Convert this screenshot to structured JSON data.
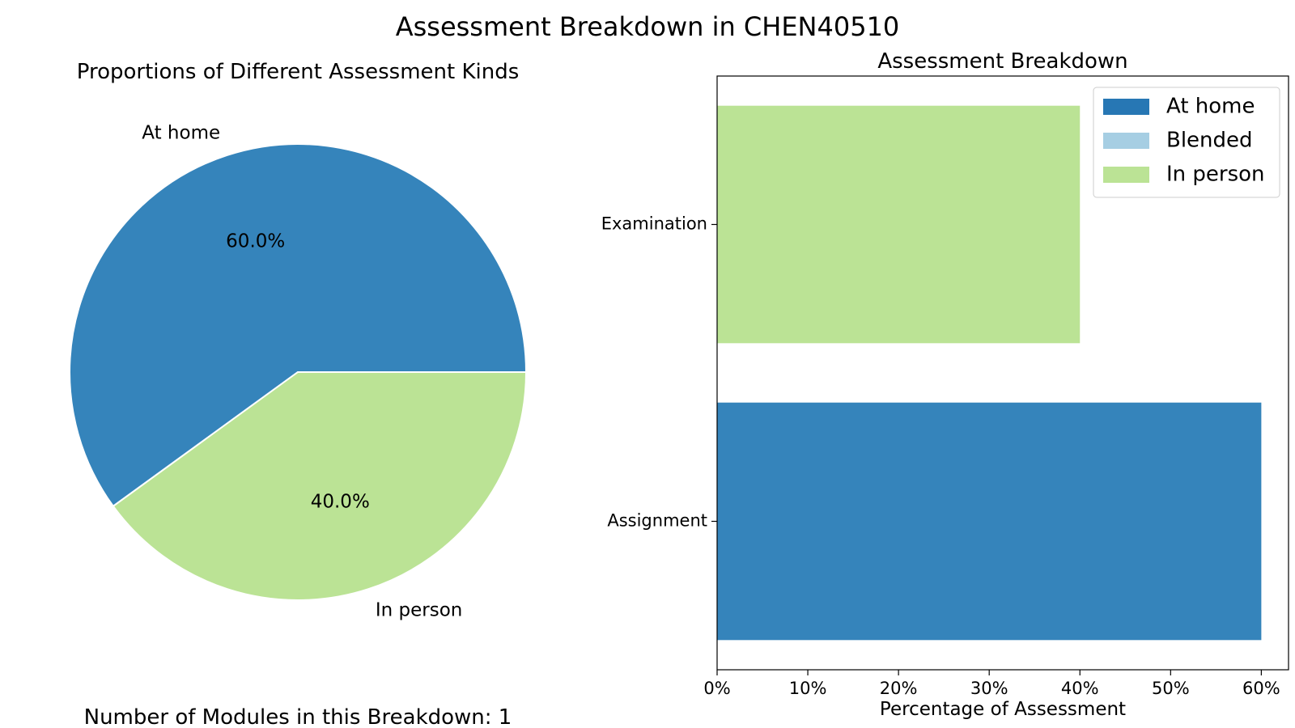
{
  "figure_title": "Assessment Breakdown in CHEN40510",
  "footer": "Number of Modules in this Breakdown: 1",
  "chart_data": [
    {
      "type": "pie",
      "title": "Proportions of Different Assessment Kinds",
      "slices": [
        {
          "label": "At home",
          "value": 60.0,
          "pct_label": "60.0%",
          "color": "#3584bb"
        },
        {
          "label": "In person",
          "value": 40.0,
          "pct_label": "40.0%",
          "color": "#bbe395"
        }
      ]
    },
    {
      "type": "bar",
      "orientation": "horizontal",
      "stacked": true,
      "title": "Assessment Breakdown",
      "xlabel": "Percentage of Assessment",
      "ylabel": "",
      "xlim": [
        0,
        63
      ],
      "xticks": [
        0,
        10,
        20,
        30,
        40,
        50,
        60
      ],
      "xtick_labels": [
        "0%",
        "10%",
        "20%",
        "30%",
        "40%",
        "50%",
        "60%"
      ],
      "categories": [
        "Assignment",
        "Examination"
      ],
      "series": [
        {
          "name": "At home",
          "color": "#3584bb",
          "values": [
            60,
            0
          ]
        },
        {
          "name": "Blended",
          "color": "#a6cee3",
          "values": [
            0,
            0
          ]
        },
        {
          "name": "In person",
          "color": "#bbe395",
          "values": [
            0,
            40
          ]
        }
      ],
      "legend": "top-right",
      "legend_colors": [
        "#2777b4",
        "#a6cee3",
        "#bbe395"
      ],
      "grid": false
    }
  ]
}
